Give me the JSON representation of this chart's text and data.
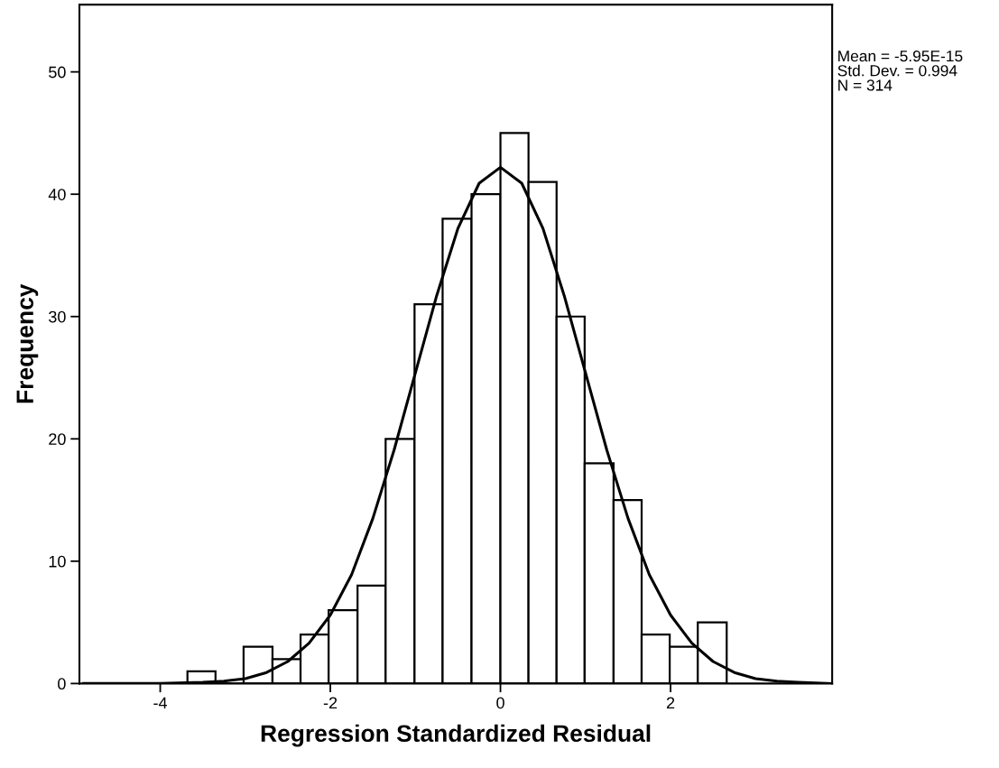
{
  "chart_data": {
    "type": "histogram",
    "xlabel": "Regression Standardized Residual",
    "ylabel": "Frequency",
    "bins": [
      -3.68,
      -3.35,
      -3.02,
      -2.68,
      -2.35,
      -2.02,
      -1.68,
      -1.35,
      -1.01,
      -0.68,
      -0.34,
      0,
      0.33,
      0.66,
      0.99,
      1.33,
      1.66,
      1.99,
      2.32,
      2.66
    ],
    "values": [
      1,
      0,
      3,
      2,
      4,
      6,
      8,
      20,
      31,
      38,
      40,
      45,
      41,
      30,
      18,
      15,
      4,
      3,
      5
    ],
    "color": "#ffffff",
    "series": [
      {
        "type": "line",
        "color": "#000000",
        "x": [
          -4.9,
          -4.5,
          -4,
          -3.5,
          -3.25,
          -3,
          -2.75,
          -2.5,
          -2.25,
          -2,
          -1.75,
          -1.5,
          -1.25,
          -1,
          -0.75,
          -0.5,
          -0.25,
          0,
          0.25,
          0.5,
          0.75,
          1,
          1.25,
          1.5,
          1.75,
          2,
          2.25,
          2.5,
          2.75,
          3,
          3.25,
          3.5,
          3.9
        ],
        "values": [
          0.0,
          0.0,
          0.0,
          0.1,
          0.2,
          0.4,
          0.9,
          1.8,
          3.3,
          5.6,
          8.9,
          13.5,
          19.1,
          25.4,
          31.7,
          37.2,
          40.9,
          42.2,
          40.9,
          37.2,
          31.7,
          25.4,
          19.1,
          13.5,
          8.9,
          5.6,
          3.3,
          1.8,
          0.9,
          0.4,
          0.2,
          0.1,
          0.0
        ]
      }
    ],
    "annotations": [
      "Mean = -5.95E-15",
      "Std. Dev. = 0.994",
      "N = 314"
    ],
    "xlim": [
      -4.95,
      3.9
    ],
    "ylim": [
      0,
      55.5
    ],
    "xticks": [
      -4,
      -2,
      0,
      2
    ],
    "yticks": [
      0,
      10,
      20,
      30,
      40,
      50
    ],
    "grid": false,
    "legend": false
  }
}
